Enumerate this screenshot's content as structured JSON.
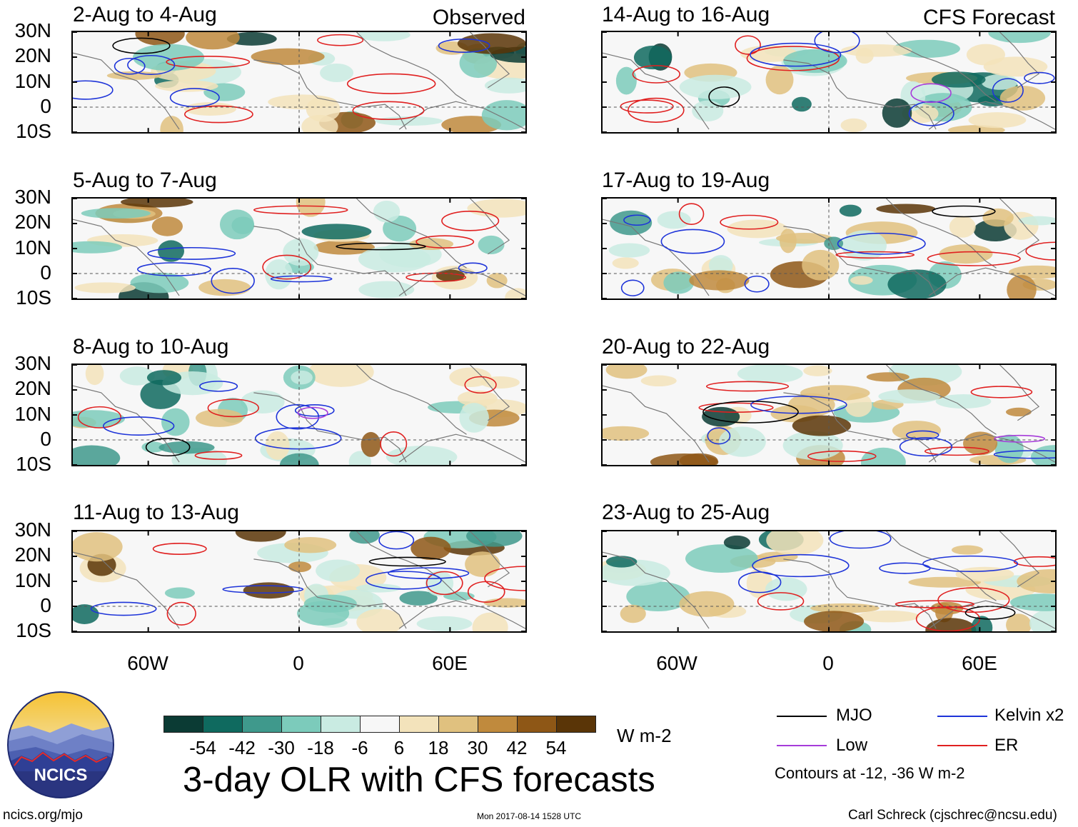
{
  "chart_data": {
    "type": "heatmap",
    "title": "3-day OLR with CFS forecasts",
    "units": "W m-2",
    "lat_ticks": [
      "30N",
      "20N",
      "10N",
      "0",
      "10S"
    ],
    "lon_ticks": [
      "60W",
      "0",
      "60E"
    ],
    "lat_range": [
      -10,
      30
    ],
    "lon_range": [
      -90,
      90
    ],
    "columns": [
      {
        "label": "Observed",
        "panels": [
          "2-Aug to 4-Aug",
          "5-Aug to 7-Aug",
          "8-Aug to 10-Aug",
          "11-Aug to 13-Aug"
        ]
      },
      {
        "label": "CFS Forecast",
        "panels": [
          "14-Aug to 16-Aug",
          "17-Aug to 19-Aug",
          "20-Aug to 22-Aug",
          "23-Aug to 25-Aug"
        ]
      }
    ],
    "colorbar": {
      "labels": [
        "-54",
        "-42",
        "-30",
        "-18",
        "-6",
        "6",
        "18",
        "30",
        "42",
        "54"
      ],
      "colors": [
        "#0b3b34",
        "#0f6a5f",
        "#3f998c",
        "#7ccbbb",
        "#c9ebe2",
        "#f7f7f7",
        "#f3e3bb",
        "#e0c17f",
        "#c08a3d",
        "#8e5716",
        "#5a3507"
      ]
    },
    "legend": [
      {
        "name": "MJO",
        "color": "#000000"
      },
      {
        "name": "Kelvin x2",
        "color": "#1e34d9"
      },
      {
        "name": "Low",
        "color": "#a63bd9"
      },
      {
        "name": "ER",
        "color": "#e02020"
      }
    ],
    "contour_note": "Contours at -12, -36 W m-2"
  },
  "footer": {
    "left": "ncics.org/mjo",
    "center": "Mon 2017-08-14 1528 UTC",
    "right": "Carl Schreck (cjschrec@ncsu.edu)",
    "logo_text": "NCICS"
  }
}
